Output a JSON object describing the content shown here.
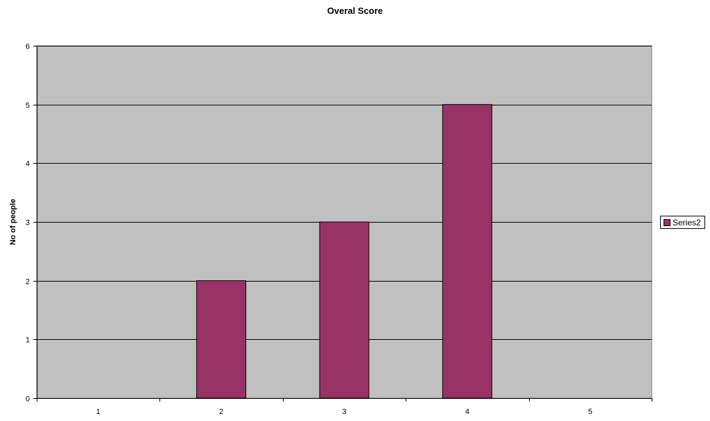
{
  "chart_data": {
    "type": "bar",
    "title": "Overal Score",
    "xlabel": "",
    "ylabel": "No of people",
    "categories": [
      "1",
      "2",
      "3",
      "4",
      "5"
    ],
    "series": [
      {
        "name": "Series2",
        "values": [
          0,
          2,
          3,
          5,
          0
        ]
      }
    ],
    "ylim": [
      0,
      6
    ],
    "yticks": [
      0,
      1,
      2,
      3,
      4,
      5,
      6
    ],
    "grid": true,
    "legend_position": "right",
    "colors": {
      "bar": "#993366",
      "plot_background": "#c0c0c0",
      "gridline": "#000000"
    }
  }
}
